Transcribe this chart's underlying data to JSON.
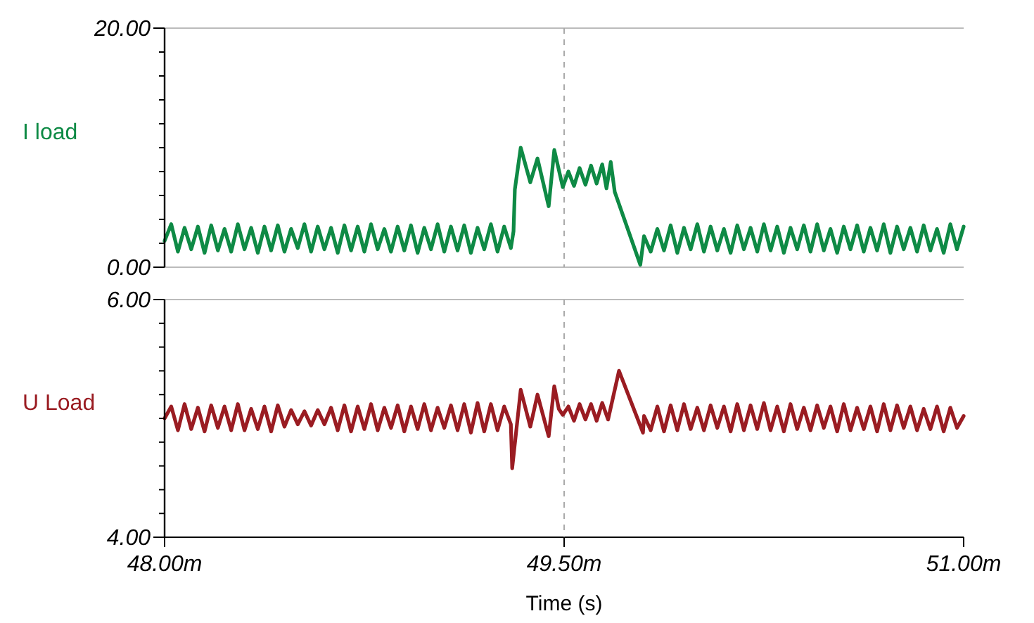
{
  "chart_data": [
    {
      "type": "line",
      "xlim": [
        48,
        51
      ],
      "ylim": [
        0,
        20
      ],
      "yticks": [
        {
          "value": 0,
          "label": "0.00"
        },
        {
          "value": 2,
          "label": null
        },
        {
          "value": 4,
          "label": null
        },
        {
          "value": 6,
          "label": null
        },
        {
          "value": 8,
          "label": null
        },
        {
          "value": 10,
          "label": null
        },
        {
          "value": 12,
          "label": null
        },
        {
          "value": 14,
          "label": null
        },
        {
          "value": 16,
          "label": null
        },
        {
          "value": 18,
          "label": null
        },
        {
          "value": 20,
          "label": "20.00"
        }
      ],
      "tick_labels": "y",
      "legend": false,
      "grid": false,
      "ref_lines": [
        {
          "axis": "x",
          "value": 49.5,
          "color": "#aaaaaa",
          "line_style": "dashed"
        }
      ],
      "series": [
        {
          "name": "I load",
          "color": "#0e8a45",
          "x": [
            48,
            48.025,
            48.05,
            48.075,
            48.1,
            48.125,
            48.15,
            48.175,
            48.2,
            48.225,
            48.25,
            48.275,
            48.3,
            48.325,
            48.35,
            48.375,
            48.4,
            48.425,
            48.45,
            48.475,
            48.5,
            48.525,
            48.55,
            48.575,
            48.6,
            48.625,
            48.65,
            48.675,
            48.7,
            48.725,
            48.75,
            48.775,
            48.8,
            48.825,
            48.85,
            48.875,
            48.9,
            48.925,
            48.95,
            48.975,
            49,
            49.025,
            49.05,
            49.075,
            49.1,
            49.125,
            49.15,
            49.175,
            49.2,
            49.225,
            49.25,
            49.275,
            49.3,
            49.31,
            49.315,
            49.337,
            49.373,
            49.4,
            49.442,
            49.463,
            49.495,
            49.516,
            49.537,
            49.558,
            49.58,
            49.601,
            49.622,
            49.643,
            49.659,
            49.675,
            49.69,
            49.786,
            49.8,
            49.825,
            49.85,
            49.875,
            49.9,
            49.925,
            49.95,
            49.975,
            50,
            50.025,
            50.05,
            50.075,
            50.1,
            50.125,
            50.15,
            50.175,
            50.2,
            50.225,
            50.25,
            50.275,
            50.3,
            50.325,
            50.35,
            50.375,
            50.4,
            50.425,
            50.45,
            50.475,
            50.5,
            50.525,
            50.55,
            50.575,
            50.6,
            50.625,
            50.65,
            50.675,
            50.7,
            50.725,
            50.75,
            50.775,
            50.8,
            50.825,
            50.85,
            50.875,
            50.9,
            50.925,
            50.95,
            50.975,
            51
          ],
          "values": [
            2.2,
            3.6,
            1.3,
            3.3,
            1.5,
            3.4,
            1.2,
            3.5,
            1.4,
            3.2,
            1.3,
            3.6,
            1.5,
            3.3,
            1.2,
            3.4,
            1.4,
            3.5,
            1.3,
            3.2,
            1.6,
            3.6,
            1.3,
            3.4,
            1.5,
            3.3,
            1.2,
            3.5,
            1.4,
            3.4,
            1.3,
            3.6,
            1.5,
            3.2,
            1.3,
            3.4,
            1.4,
            3.5,
            1.2,
            3.3,
            1.5,
            3.6,
            1.3,
            3.4,
            1.4,
            3.5,
            1.2,
            3.3,
            1.5,
            3.6,
            1.3,
            3.4,
            1.6,
            3.0,
            6.5,
            10.0,
            7.1,
            9.1,
            5.1,
            9.8,
            6.7,
            8.0,
            6.8,
            8.3,
            6.9,
            8.5,
            7.0,
            8.6,
            6.6,
            8.8,
            6.3,
            0.2,
            2.6,
            1.3,
            3.2,
            1.4,
            3.5,
            1.2,
            3.3,
            1.5,
            3.6,
            1.3,
            3.4,
            1.4,
            3.2,
            1.2,
            3.5,
            1.5,
            3.3,
            1.3,
            3.6,
            1.4,
            3.4,
            1.2,
            3.3,
            1.5,
            3.5,
            1.3,
            3.6,
            1.4,
            3.2,
            1.2,
            3.4,
            1.5,
            3.5,
            1.3,
            3.3,
            1.4,
            3.6,
            1.2,
            3.4,
            1.5,
            3.3,
            1.3,
            3.5,
            1.4,
            3.2,
            1.2,
            3.6,
            1.5,
            3.4
          ]
        }
      ]
    },
    {
      "type": "line",
      "xlabel": "Time (s)",
      "xlim": [
        48,
        51
      ],
      "xticks": [
        {
          "value": 48,
          "label": "48.00m"
        },
        {
          "value": 49.5,
          "label": "49.50m"
        },
        {
          "value": 51,
          "label": "51.00m"
        }
      ],
      "ylim": [
        4,
        6
      ],
      "yticks": [
        {
          "value": 4,
          "label": "4.00"
        },
        {
          "value": 4.2,
          "label": null
        },
        {
          "value": 4.4,
          "label": null
        },
        {
          "value": 4.6,
          "label": null
        },
        {
          "value": 4.8,
          "label": null
        },
        {
          "value": 5,
          "label": null
        },
        {
          "value": 5.2,
          "label": null
        },
        {
          "value": 5.4,
          "label": null
        },
        {
          "value": 5.6,
          "label": null
        },
        {
          "value": 5.8,
          "label": null
        },
        {
          "value": 6,
          "label": "6.00"
        }
      ],
      "legend": false,
      "grid": false,
      "ref_lines": [
        {
          "axis": "x",
          "value": 49.5,
          "color": "#aaaaaa",
          "line_style": "dashed"
        }
      ],
      "series": [
        {
          "name": "U Load",
          "color": "#9a1c22",
          "x": [
            48,
            48.025,
            48.05,
            48.075,
            48.1,
            48.125,
            48.15,
            48.175,
            48.2,
            48.225,
            48.25,
            48.275,
            48.3,
            48.325,
            48.35,
            48.375,
            48.4,
            48.425,
            48.45,
            48.475,
            48.5,
            48.525,
            48.55,
            48.575,
            48.6,
            48.625,
            48.65,
            48.675,
            48.7,
            48.725,
            48.75,
            48.775,
            48.8,
            48.825,
            48.85,
            48.875,
            48.9,
            48.925,
            48.95,
            48.975,
            49,
            49.025,
            49.05,
            49.075,
            49.1,
            49.125,
            49.15,
            49.175,
            49.2,
            49.225,
            49.25,
            49.275,
            49.3,
            49.305,
            49.337,
            49.373,
            49.4,
            49.442,
            49.463,
            49.48,
            49.495,
            49.516,
            49.537,
            49.558,
            49.58,
            49.601,
            49.622,
            49.643,
            49.665,
            49.706,
            49.796,
            49.8,
            49.825,
            49.85,
            49.875,
            49.9,
            49.925,
            49.95,
            49.975,
            50,
            50.025,
            50.05,
            50.075,
            50.1,
            50.125,
            50.15,
            50.175,
            50.2,
            50.225,
            50.25,
            50.275,
            50.3,
            50.325,
            50.35,
            50.375,
            50.4,
            50.425,
            50.45,
            50.475,
            50.5,
            50.525,
            50.55,
            50.575,
            50.6,
            50.625,
            50.65,
            50.675,
            50.7,
            50.725,
            50.75,
            50.775,
            50.8,
            50.825,
            50.85,
            50.875,
            50.9,
            50.925,
            50.95,
            50.975,
            51
          ],
          "values": [
            5.0,
            5.1,
            4.9,
            5.12,
            4.91,
            5.09,
            4.89,
            5.11,
            4.92,
            5.1,
            4.9,
            5.12,
            4.9,
            5.08,
            4.91,
            5.1,
            4.89,
            5.11,
            4.93,
            5.07,
            4.95,
            5.06,
            4.94,
            5.07,
            4.95,
            5.09,
            4.9,
            5.11,
            4.89,
            5.1,
            4.91,
            5.12,
            4.9,
            5.09,
            4.92,
            5.11,
            4.89,
            5.1,
            4.91,
            5.12,
            4.9,
            5.09,
            4.92,
            5.11,
            4.9,
            5.12,
            4.88,
            5.13,
            4.89,
            5.12,
            4.9,
            5.1,
            4.95,
            4.58,
            5.24,
            4.93,
            5.2,
            4.85,
            5.27,
            5.08,
            5.03,
            5.1,
            4.98,
            5.12,
            4.99,
            5.12,
            4.98,
            5.13,
            4.99,
            5.4,
            4.88,
            5.02,
            4.9,
            5.1,
            4.89,
            5.11,
            4.9,
            5.12,
            4.91,
            5.09,
            4.9,
            5.11,
            4.92,
            5.1,
            4.89,
            5.12,
            4.9,
            5.11,
            4.91,
            5.13,
            4.9,
            5.1,
            4.89,
            5.12,
            4.91,
            5.09,
            4.9,
            5.11,
            4.92,
            5.1,
            4.89,
            5.12,
            4.9,
            5.09,
            4.91,
            5.1,
            4.89,
            5.12,
            4.9,
            5.11,
            4.92,
            5.1,
            4.9,
            5.08,
            4.91,
            5.1,
            4.89,
            5.09,
            4.92,
            5.02
          ]
        }
      ]
    }
  ]
}
